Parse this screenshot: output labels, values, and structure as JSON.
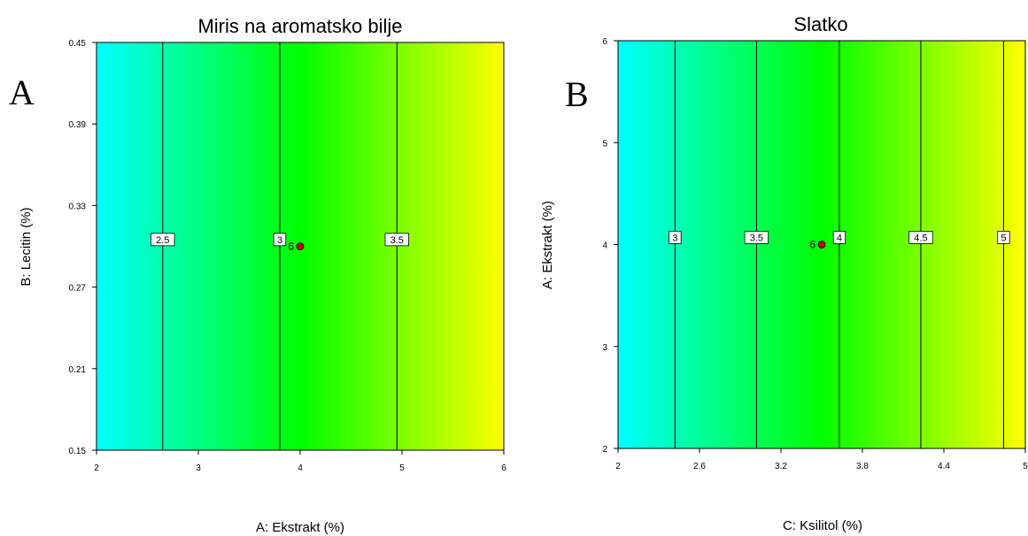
{
  "chart_data": [
    {
      "type": "contour",
      "panel_letter": "A",
      "title": "Miris na aromatsko bilje",
      "xlabel": "A: Ekstrakt (%)",
      "ylabel": "B: Lecitin (%)",
      "xlim": [
        2,
        6
      ],
      "ylim": [
        0.15,
        0.45
      ],
      "xticks": [
        "2",
        "3",
        "4",
        "5",
        "6"
      ],
      "yticks": [
        "0.15",
        "0.21",
        "0.27",
        "0.33",
        "0.39",
        "0.45"
      ],
      "colormap": [
        "#00ffff",
        "#00ff00",
        "#ffff00"
      ],
      "color_range_x": [
        2,
        6
      ],
      "contours": [
        {
          "level": "2.5",
          "x": 2.65
        },
        {
          "level": "3",
          "x": 3.8
        },
        {
          "level": "3.5",
          "x": 4.95
        }
      ],
      "contour_label_y": 0.305,
      "design_point": {
        "label": "6",
        "x": 4.0,
        "y": 0.3,
        "color": "#cc0000"
      },
      "grid": false,
      "legend": "none"
    },
    {
      "type": "contour",
      "panel_letter": "B",
      "title": "Slatko",
      "xlabel": "C: Ksilitol (%)",
      "ylabel": "A: Ekstrakt (%)",
      "xlim": [
        2,
        5
      ],
      "ylim": [
        2,
        6
      ],
      "xticks": [
        "2",
        "2.6",
        "3.2",
        "3.8",
        "4.4",
        "5"
      ],
      "yticks": [
        "2",
        "3",
        "4",
        "5",
        "6"
      ],
      "colormap": [
        "#00ffff",
        "#00ff00",
        "#ffff00"
      ],
      "color_range_x": [
        2,
        5
      ],
      "contours": [
        {
          "level": "3",
          "x": 2.42
        },
        {
          "level": "3.5",
          "x": 3.02
        },
        {
          "level": "4",
          "x": 3.63
        },
        {
          "level": "4.5",
          "x": 4.23
        },
        {
          "level": "5",
          "x": 4.84
        }
      ],
      "contour_label_y": 4.07,
      "design_point": {
        "label": "6",
        "x": 3.5,
        "y": 4.0,
        "color": "#cc0000"
      },
      "grid": false,
      "legend": "none"
    }
  ]
}
